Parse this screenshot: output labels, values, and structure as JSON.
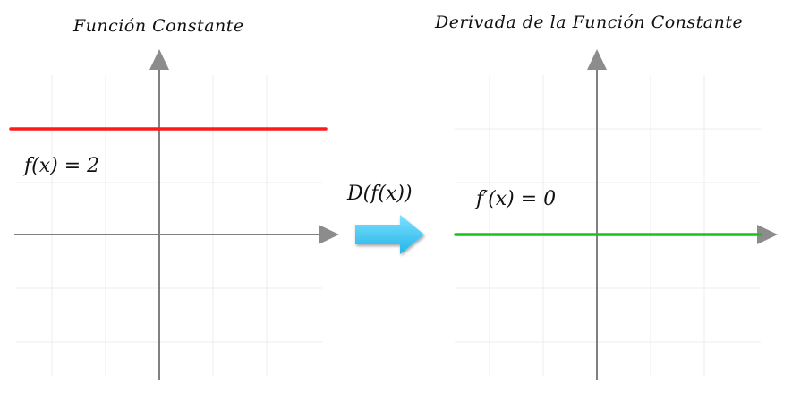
{
  "left_panel": {
    "title": "Función Constante",
    "function_label": "f(x) = 2",
    "line_color": "#ff1a1a"
  },
  "operator": {
    "label": "D(f(x))",
    "arrow_color": "#3ec6f2"
  },
  "right_panel": {
    "title": "Derivada de la Función Constante",
    "function_label": "f′(x) = 0",
    "line_color": "#19c219"
  },
  "axis_color": "#808080",
  "grid_color": "#e6e6e6"
}
